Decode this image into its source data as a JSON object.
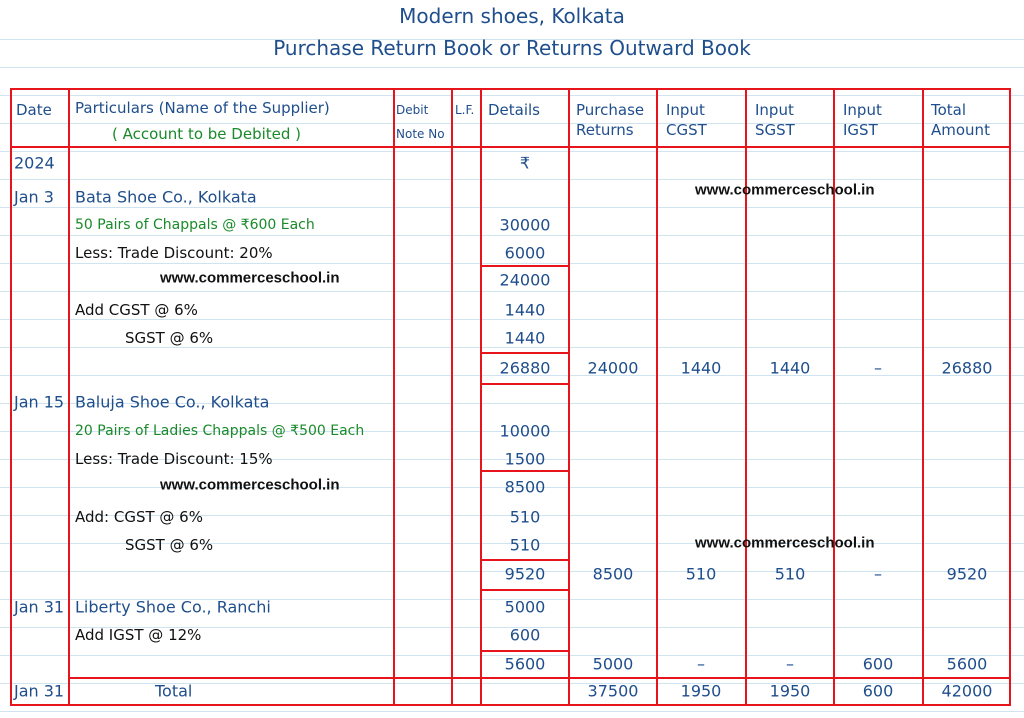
{
  "title": "Modern shoes, Kolkata",
  "subtitle": "Purchase Return Book or Returns Outward Book",
  "watermark": "www.commerceschool.in",
  "headers": {
    "date": "Date",
    "particulars": "Particulars (Name of the Supplier)",
    "particulars_sub": "( Account to be Debited )",
    "debit_note": "Debit Note No",
    "lf": "L.F.",
    "details": "Details",
    "purchase_returns": "Purchase Returns",
    "input_cgst": "Input CGST",
    "input_sgst": "Input SGST",
    "input_igst": "Input IGST",
    "total_amount": "Total Amount"
  },
  "rows": [
    {
      "date": "2024",
      "particulars": "",
      "details": "₹"
    },
    {
      "date": "Jan 3",
      "particulars": "Bata Shoe Co., Kolkata",
      "details": ""
    },
    {
      "date": "",
      "particulars": "50 Pairs of Chappals @ ₹600 Each",
      "style": "green",
      "details": "30000"
    },
    {
      "date": "",
      "particulars": "Less: Trade Discount: 20%",
      "style": "black",
      "details": "6000"
    },
    {
      "date": "",
      "particulars": "",
      "details": "24000",
      "watermark": true
    },
    {
      "date": "",
      "particulars": "Add CGST @ 6%",
      "style": "black",
      "details": "1440"
    },
    {
      "date": "",
      "particulars": "SGST @ 6%",
      "style": "black",
      "indent": true,
      "details": "1440"
    },
    {
      "date": "",
      "particulars": "",
      "details": "26880",
      "purchase_returns": "24000",
      "cgst": "1440",
      "sgst": "1440",
      "igst": "–",
      "total": "26880"
    },
    {
      "date": "Jan 15",
      "particulars": "Baluja Shoe Co., Kolkata",
      "details": ""
    },
    {
      "date": "",
      "particulars": "20 Pairs of Ladies Chappals @ ₹500 Each",
      "style": "green",
      "details": "10000"
    },
    {
      "date": "",
      "particulars": "Less: Trade Discount: 15%",
      "style": "black",
      "details": "1500"
    },
    {
      "date": "",
      "particulars": "",
      "details": "8500",
      "watermark": true
    },
    {
      "date": "",
      "particulars": "Add: CGST @ 6%",
      "style": "black",
      "details": "510"
    },
    {
      "date": "",
      "particulars": "SGST @ 6%",
      "style": "black",
      "indent": true,
      "details": "510"
    },
    {
      "date": "",
      "particulars": "",
      "details": "9520",
      "purchase_returns": "8500",
      "cgst": "510",
      "sgst": "510",
      "igst": "–",
      "total": "9520"
    },
    {
      "date": "Jan 31",
      "particulars": "Liberty Shoe Co., Ranchi",
      "details": "5000"
    },
    {
      "date": "",
      "particulars": "Add IGST @ 12%",
      "style": "black",
      "details": "600"
    },
    {
      "date": "",
      "particulars": "",
      "details": "5600",
      "purchase_returns": "5000",
      "cgst": "–",
      "sgst": "–",
      "igst": "600",
      "total": "5600"
    },
    {
      "date": "Jan 31",
      "particulars": "Total",
      "total_row": true,
      "details": "",
      "purchase_returns": "37500",
      "cgst": "1950",
      "sgst": "1950",
      "igst": "600",
      "total": "42000"
    }
  ]
}
